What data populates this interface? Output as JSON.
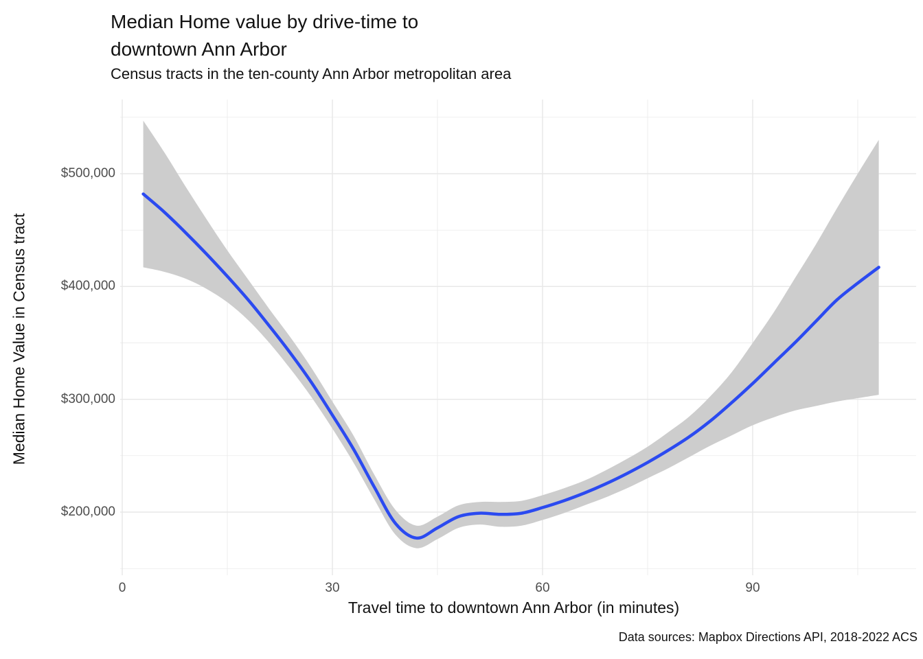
{
  "title": "Median Home value by drive-time to\ndowntown Ann Arbor",
  "subtitle": "Census tracts in the ten-county Ann Arbor metropolitan area",
  "caption": "Data sources: Mapbox Directions API, 2018-2022 ACS",
  "chart_data": {
    "type": "line",
    "title": "Median Home value by drive-time to downtown Ann Arbor",
    "subtitle": "Census tracts in the ten-county Ann Arbor metropolitan area",
    "xlabel": "Travel time to downtown Ann Arbor (in minutes)",
    "ylabel": "Median Home Value in Census tract",
    "caption": "Data sources: Mapbox Directions API, 2018-2022 ACS",
    "grid": true,
    "legend": "none",
    "xlim": [
      -0.3,
      113.3
    ],
    "ylim": [
      144000,
      565000
    ],
    "x_ticks": [
      {
        "value": 0,
        "label": "0"
      },
      {
        "value": 30,
        "label": "30"
      },
      {
        "value": 60,
        "label": "60"
      },
      {
        "value": 90,
        "label": "90"
      }
    ],
    "x_minor_ticks": [
      15,
      45,
      75,
      105
    ],
    "y_ticks": [
      {
        "value": 200000,
        "label": "$200,000"
      },
      {
        "value": 300000,
        "label": "$300,000"
      },
      {
        "value": 400000,
        "label": "$400,000"
      },
      {
        "value": 500000,
        "label": "$500,000"
      }
    ],
    "y_minor_ticks": [
      150000,
      250000,
      350000,
      450000,
      550000
    ],
    "line_color": "#2b4af0",
    "ribbon_color": "#cdcdcd",
    "grid_color": "#e7e7e7",
    "series": [
      {
        "name": "loess-smooth-with-confidence-band",
        "x": [
          3,
          6,
          9,
          12,
          15,
          18,
          21,
          24,
          27,
          30,
          33,
          36,
          39,
          42,
          45,
          48,
          51,
          54,
          57,
          60,
          63,
          66,
          69,
          72,
          75,
          78,
          81,
          84,
          87,
          90,
          93,
          96,
          99,
          102,
          105,
          108
        ],
        "y": [
          482000,
          466000,
          448000,
          429000,
          409000,
          388000,
          365000,
          341000,
          315000,
          286000,
          256000,
          222000,
          190000,
          177000,
          186000,
          196000,
          199000,
          198000,
          199000,
          204000,
          210000,
          217000,
          225000,
          234000,
          244000,
          255000,
          267000,
          281000,
          297000,
          314000,
          332000,
          350000,
          369000,
          388000,
          403000,
          417000
        ],
        "ci_lower": [
          417000,
          413000,
          407000,
          398000,
          386000,
          370000,
          350000,
          327000,
          302000,
          274000,
          244000,
          211000,
          180000,
          168000,
          176000,
          186000,
          189000,
          187000,
          188000,
          193000,
          199000,
          206000,
          213000,
          221000,
          230000,
          239000,
          249000,
          259000,
          268000,
          277000,
          284000,
          290000,
          294000,
          298000,
          301000,
          304000
        ],
        "ci_upper": [
          547000,
          519000,
          489000,
          460000,
          432000,
          406000,
          380000,
          355000,
          328000,
          298000,
          268000,
          233000,
          202000,
          188000,
          196000,
          206000,
          209000,
          209000,
          210000,
          215000,
          221000,
          228000,
          237000,
          247000,
          258000,
          271000,
          285000,
          303000,
          324000,
          350000,
          377000,
          407000,
          437000,
          469000,
          500000,
          530000
        ]
      }
    ]
  }
}
